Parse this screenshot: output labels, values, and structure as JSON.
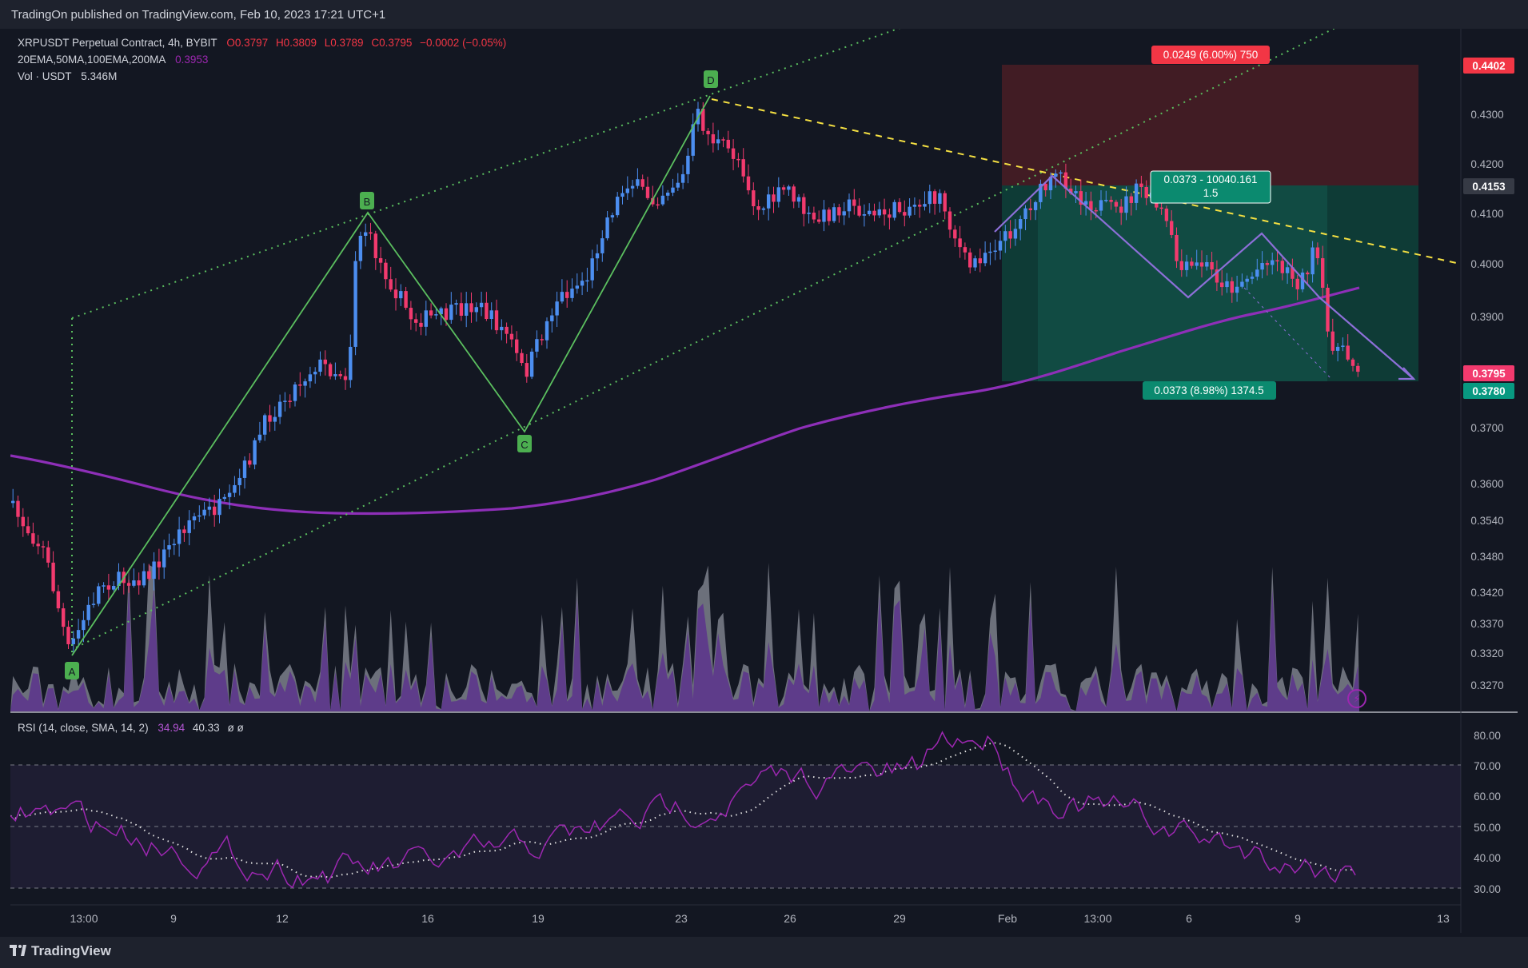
{
  "header": {
    "published": "TradingOn published on TradingView.com, Feb 10, 2023 17:21 UTC+1"
  },
  "legend": {
    "symbol": "XRPUSDT Perpetual Contract, 4h, BYBIT",
    "open": "O0.3797",
    "high": "H0.3809",
    "low": "L0.3789",
    "close": "C0.3795",
    "change": "−0.0002 (−0.05%)",
    "ma_label": "20EMA,50MA,100EMA,200MA",
    "ma_value": "0.3953",
    "vol_label": "Vol · USDT",
    "vol_value": "5.346M"
  },
  "rsi_legend": {
    "label": "RSI (14, close, SMA, 14, 2)",
    "value1": "34.94",
    "value2": "40.33",
    "extra": "ø ø"
  },
  "footer": {
    "brand": "TradingView"
  },
  "colors": {
    "background": "#131722",
    "up": "#4c8ef0",
    "down": "#f23a6e",
    "ma200": "#8e2fb8",
    "pattern": "#66bb6a",
    "trendline": "#f5e042",
    "stop_zone": "#5a2128",
    "target_zone": "#10463f",
    "rsi": "#9c27b0"
  },
  "chart_data": [
    {
      "type": "candlestick",
      "title": "XRPUSDT Perpetual Contract, 4h, BYBIT",
      "y_axis_ticks": [
        "0.4300",
        "0.4200",
        "0.4100",
        "0.4000",
        "0.3900",
        "0.3700",
        "0.3600",
        "0.3540",
        "0.3480",
        "0.3420",
        "0.3370",
        "0.3320",
        "0.3270"
      ],
      "x_axis_ticks": [
        "13:00",
        "9",
        "12",
        "16",
        "19",
        "23",
        "26",
        "29",
        "Feb",
        "13:00",
        "6",
        "9",
        "13"
      ],
      "price_labels": [
        {
          "value": "0.4402",
          "kind": "stop"
        },
        {
          "value": "0.4153",
          "kind": "entry"
        },
        {
          "value": "0.3795",
          "kind": "last"
        },
        {
          "value": "0.3780",
          "kind": "target"
        }
      ],
      "pattern_points": [
        {
          "label": "A",
          "price": 0.3325
        },
        {
          "label": "B",
          "price": 0.4085
        },
        {
          "label": "C",
          "price": 0.3685
        },
        {
          "label": "D",
          "price": 0.433
        }
      ],
      "position": {
        "stop_label": "0.0249 (6.00%) 750",
        "entry_label": "0.0373 - 10040.161",
        "ratio": "1.5",
        "target_label": "0.0373 (8.98%) 1374.5"
      }
    },
    {
      "type": "line",
      "title": "RSI (14, close, SMA, 14, 2)",
      "y_axis_ticks": [
        "80.00",
        "70.00",
        "60.00",
        "50.00",
        "40.00",
        "30.00"
      ],
      "rsi_last": 34.94,
      "rsi_ma_last": 40.33
    }
  ]
}
